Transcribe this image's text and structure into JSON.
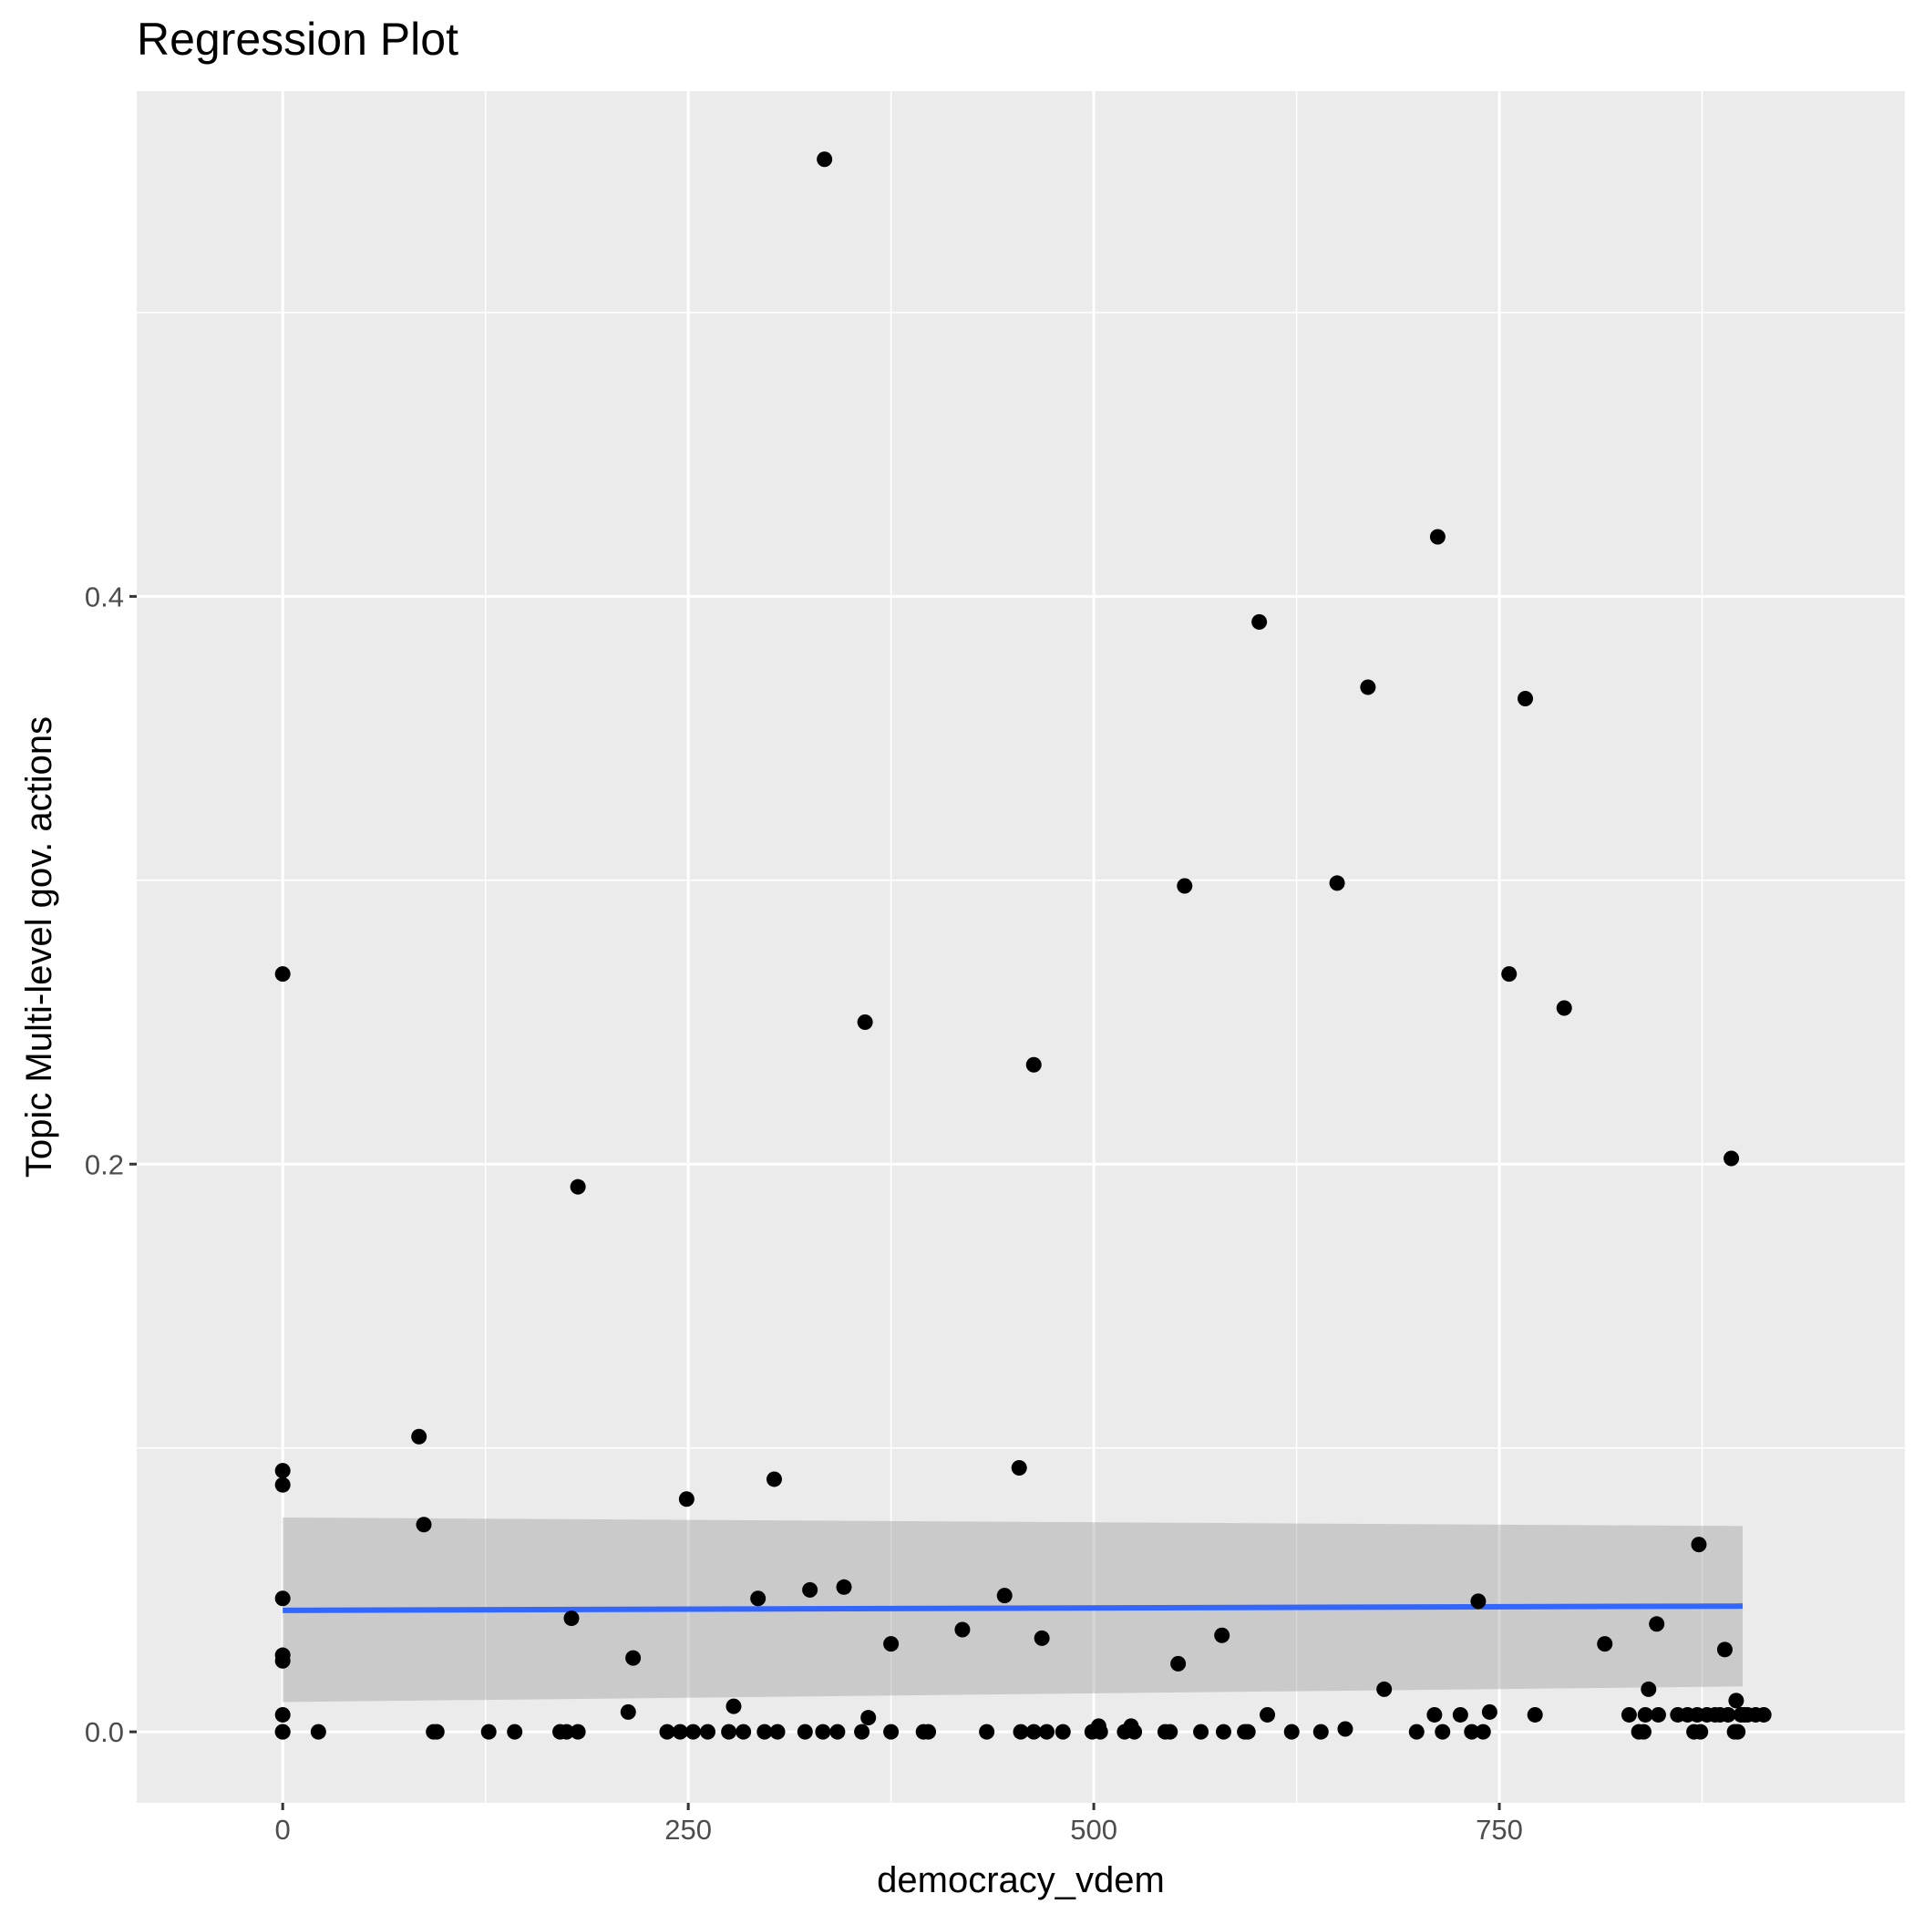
{
  "chart_data": {
    "type": "scatter",
    "title": "Regression Plot",
    "xlabel": "democracy_vdem",
    "ylabel": "Topic Multi-level gov. actions",
    "xlim": [
      -90,
      1000
    ],
    "ylim": [
      -0.025,
      0.578
    ],
    "x_ticks": [
      0,
      250,
      500,
      750
    ],
    "x_tick_labels": [
      "0",
      "250",
      "500",
      "750"
    ],
    "y_ticks": [
      0.0,
      0.2,
      0.4
    ],
    "y_tick_labels": [
      "0.0",
      "0.2",
      "0.4"
    ],
    "grid": true,
    "legend": "none",
    "colors": {
      "panel_background": "#ebebeb",
      "grid": "#ffffff",
      "points": "#000000",
      "fit_line": "#3366ff",
      "confidence_band": "#999999"
    },
    "fit": {
      "method": "lm",
      "x": [
        0,
        900
      ],
      "y": [
        0.0428,
        0.0443
      ],
      "ci_lower": [
        0.0105,
        0.016
      ],
      "ci_upper": [
        0.0755,
        0.0725
      ]
    },
    "points": [
      {
        "x": 0,
        "y": 0.267
      },
      {
        "x": 0,
        "y": 0.092
      },
      {
        "x": 0,
        "y": 0.087
      },
      {
        "x": 0,
        "y": 0.047
      },
      {
        "x": 0,
        "y": 0.027
      },
      {
        "x": 0,
        "y": 0.025
      },
      {
        "x": 0,
        "y": 0.006
      },
      {
        "x": 0,
        "y": 0.0
      },
      {
        "x": 0,
        "y": 0.0
      },
      {
        "x": 22,
        "y": 0.0
      },
      {
        "x": 84,
        "y": 0.104
      },
      {
        "x": 87,
        "y": 0.073
      },
      {
        "x": 93,
        "y": 0.0
      },
      {
        "x": 95,
        "y": 0.0
      },
      {
        "x": 127,
        "y": 0.0
      },
      {
        "x": 143,
        "y": 0.0
      },
      {
        "x": 171,
        "y": 0.0
      },
      {
        "x": 175,
        "y": 0.0
      },
      {
        "x": 178,
        "y": 0.04
      },
      {
        "x": 182,
        "y": 0.192
      },
      {
        "x": 182,
        "y": 0.0
      },
      {
        "x": 213,
        "y": 0.007
      },
      {
        "x": 216,
        "y": 0.026
      },
      {
        "x": 237,
        "y": 0.0
      },
      {
        "x": 245,
        "y": 0.0
      },
      {
        "x": 249,
        "y": 0.082
      },
      {
        "x": 253,
        "y": 0.0
      },
      {
        "x": 262,
        "y": 0.0
      },
      {
        "x": 275,
        "y": 0.0
      },
      {
        "x": 278,
        "y": 0.009
      },
      {
        "x": 284,
        "y": 0.0
      },
      {
        "x": 293,
        "y": 0.047
      },
      {
        "x": 297,
        "y": 0.0
      },
      {
        "x": 303,
        "y": 0.089
      },
      {
        "x": 305,
        "y": 0.0
      },
      {
        "x": 322,
        "y": 0.0
      },
      {
        "x": 325,
        "y": 0.05
      },
      {
        "x": 333,
        "y": 0.0
      },
      {
        "x": 334,
        "y": 0.554
      },
      {
        "x": 342,
        "y": 0.0
      },
      {
        "x": 346,
        "y": 0.051
      },
      {
        "x": 357,
        "y": 0.0
      },
      {
        "x": 359,
        "y": 0.25
      },
      {
        "x": 361,
        "y": 0.005
      },
      {
        "x": 375,
        "y": 0.031
      },
      {
        "x": 375,
        "y": 0.0
      },
      {
        "x": 395,
        "y": 0.0
      },
      {
        "x": 398,
        "y": 0.0
      },
      {
        "x": 419,
        "y": 0.036
      },
      {
        "x": 434,
        "y": 0.0
      },
      {
        "x": 445,
        "y": 0.048
      },
      {
        "x": 454,
        "y": 0.093
      },
      {
        "x": 455,
        "y": 0.0
      },
      {
        "x": 463,
        "y": 0.235
      },
      {
        "x": 463,
        "y": 0.0
      },
      {
        "x": 468,
        "y": 0.033
      },
      {
        "x": 471,
        "y": 0.0
      },
      {
        "x": 481,
        "y": 0.0
      },
      {
        "x": 499,
        "y": 0.0
      },
      {
        "x": 503,
        "y": 0.002
      },
      {
        "x": 504,
        "y": 0.0
      },
      {
        "x": 519,
        "y": 0.0
      },
      {
        "x": 523,
        "y": 0.002
      },
      {
        "x": 525,
        "y": 0.0
      },
      {
        "x": 544,
        "y": 0.0
      },
      {
        "x": 547,
        "y": 0.0
      },
      {
        "x": 552,
        "y": 0.024
      },
      {
        "x": 556,
        "y": 0.298
      },
      {
        "x": 566,
        "y": 0.0
      },
      {
        "x": 579,
        "y": 0.034
      },
      {
        "x": 580,
        "y": 0.0
      },
      {
        "x": 593,
        "y": 0.0
      },
      {
        "x": 595,
        "y": 0.0
      },
      {
        "x": 602,
        "y": 0.391
      },
      {
        "x": 607,
        "y": 0.006
      },
      {
        "x": 622,
        "y": 0.0
      },
      {
        "x": 640,
        "y": 0.0
      },
      {
        "x": 650,
        "y": 0.299
      },
      {
        "x": 655,
        "y": 0.001
      },
      {
        "x": 669,
        "y": 0.368
      },
      {
        "x": 679,
        "y": 0.015
      },
      {
        "x": 699,
        "y": 0.0
      },
      {
        "x": 710,
        "y": 0.006
      },
      {
        "x": 712,
        "y": 0.421
      },
      {
        "x": 715,
        "y": 0.0
      },
      {
        "x": 726,
        "y": 0.006
      },
      {
        "x": 733,
        "y": 0.0
      },
      {
        "x": 737,
        "y": 0.046
      },
      {
        "x": 740,
        "y": 0.0
      },
      {
        "x": 744,
        "y": 0.007
      },
      {
        "x": 756,
        "y": 0.267
      },
      {
        "x": 766,
        "y": 0.364
      },
      {
        "x": 772,
        "y": 0.006
      },
      {
        "x": 790,
        "y": 0.255
      },
      {
        "x": 815,
        "y": 0.031
      },
      {
        "x": 830,
        "y": 0.006
      },
      {
        "x": 836,
        "y": 0.0
      },
      {
        "x": 839,
        "y": 0.0
      },
      {
        "x": 840,
        "y": 0.006
      },
      {
        "x": 842,
        "y": 0.015
      },
      {
        "x": 847,
        "y": 0.038
      },
      {
        "x": 848,
        "y": 0.006
      },
      {
        "x": 860,
        "y": 0.006
      },
      {
        "x": 866,
        "y": 0.006
      },
      {
        "x": 870,
        "y": 0.0
      },
      {
        "x": 872,
        "y": 0.006
      },
      {
        "x": 873,
        "y": 0.066
      },
      {
        "x": 874,
        "y": 0.0
      },
      {
        "x": 878,
        "y": 0.006
      },
      {
        "x": 883,
        "y": 0.006
      },
      {
        "x": 886,
        "y": 0.006
      },
      {
        "x": 889,
        "y": 0.029
      },
      {
        "x": 891,
        "y": 0.006
      },
      {
        "x": 895,
        "y": 0.0
      },
      {
        "x": 896,
        "y": 0.011
      },
      {
        "x": 897,
        "y": 0.0
      },
      {
        "x": 899,
        "y": 0.006
      },
      {
        "x": 901,
        "y": 0.006
      },
      {
        "x": 893,
        "y": 0.202
      },
      {
        "x": 903,
        "y": 0.006
      },
      {
        "x": 908,
        "y": 0.006
      },
      {
        "x": 913,
        "y": 0.006
      }
    ]
  }
}
